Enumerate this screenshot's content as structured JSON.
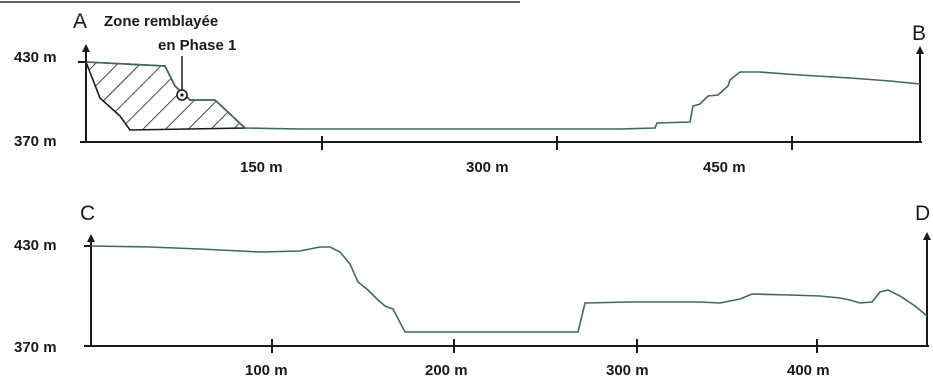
{
  "profiles": [
    {
      "id": "ab",
      "start_label": "A",
      "end_label": "B",
      "y_top_label": "430 m",
      "y_bottom_label": "370 m",
      "x_ticks": [
        "150 m",
        "300 m",
        "450 m"
      ],
      "zone_label_line1": "Zone remblayée",
      "zone_label_line2": "en Phase 1"
    },
    {
      "id": "cd",
      "start_label": "C",
      "end_label": "D",
      "y_top_label": "430 m",
      "y_bottom_label": "370 m",
      "x_ticks": [
        "100 m",
        "200 m",
        "300 m",
        "400 m"
      ]
    }
  ]
}
